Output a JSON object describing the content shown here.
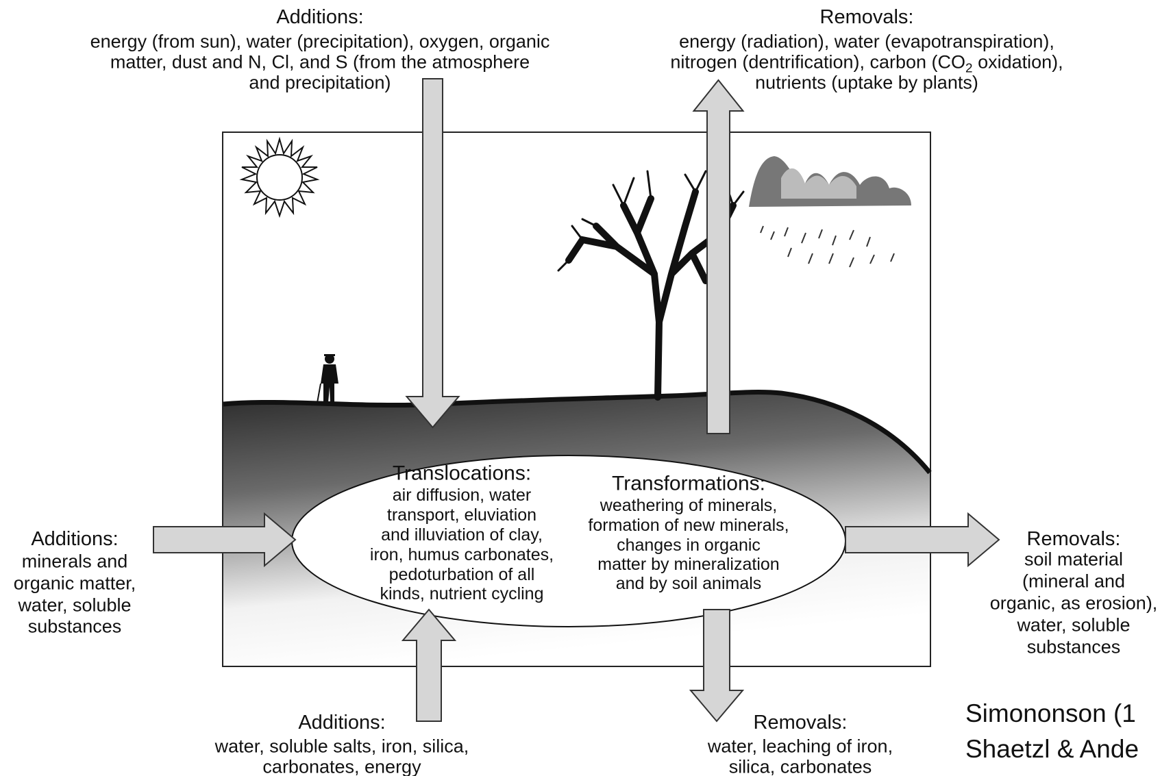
{
  "top_additions": {
    "title": "Additions:",
    "lines": [
      "energy (from sun), water (precipitation), oxygen, organic",
      "matter, dust and N, Cl, and S (from the atmosphere",
      "and precipitation)"
    ]
  },
  "top_removals": {
    "title": "Removals:",
    "lines": [
      "energy (radiation), water (evapotranspiration),",
      [
        "nitrogen (dentrification), carbon (CO",
        "2",
        " oxidation),"
      ],
      "nutrients (uptake by plants)"
    ]
  },
  "translocations": {
    "title": "Translocations:",
    "lines": [
      "air diffusion, water",
      "transport, eluviation",
      "and illuviation of clay,",
      "iron, humus carbonates,",
      "pedoturbation of all",
      "kinds, nutrient cycling"
    ]
  },
  "transformations": {
    "title": "Transformations:",
    "lines": [
      "weathering of minerals,",
      "formation of new minerals,",
      "changes in organic",
      "matter by mineralization",
      "and by soil animals"
    ]
  },
  "side_additions": {
    "title": "Additions:",
    "lines": [
      "minerals and",
      "organic matter,",
      "water, soluble",
      "substances"
    ]
  },
  "side_removals": {
    "title": "Removals:",
    "lines": [
      "soil material",
      "(mineral and",
      "organic, as erosion),",
      "water, soluble",
      "substances"
    ]
  },
  "bottom_additions": {
    "title": "Additions:",
    "lines": [
      "water, soluble salts, iron, silica,",
      "carbonates, energy"
    ]
  },
  "bottom_removals": {
    "title": "Removals:",
    "lines": [
      "water, leaching of iron,",
      "silica, carbonates"
    ]
  },
  "citation": {
    "lines": [
      "Simononson (1",
      "Shaetzl & Ande"
    ]
  }
}
